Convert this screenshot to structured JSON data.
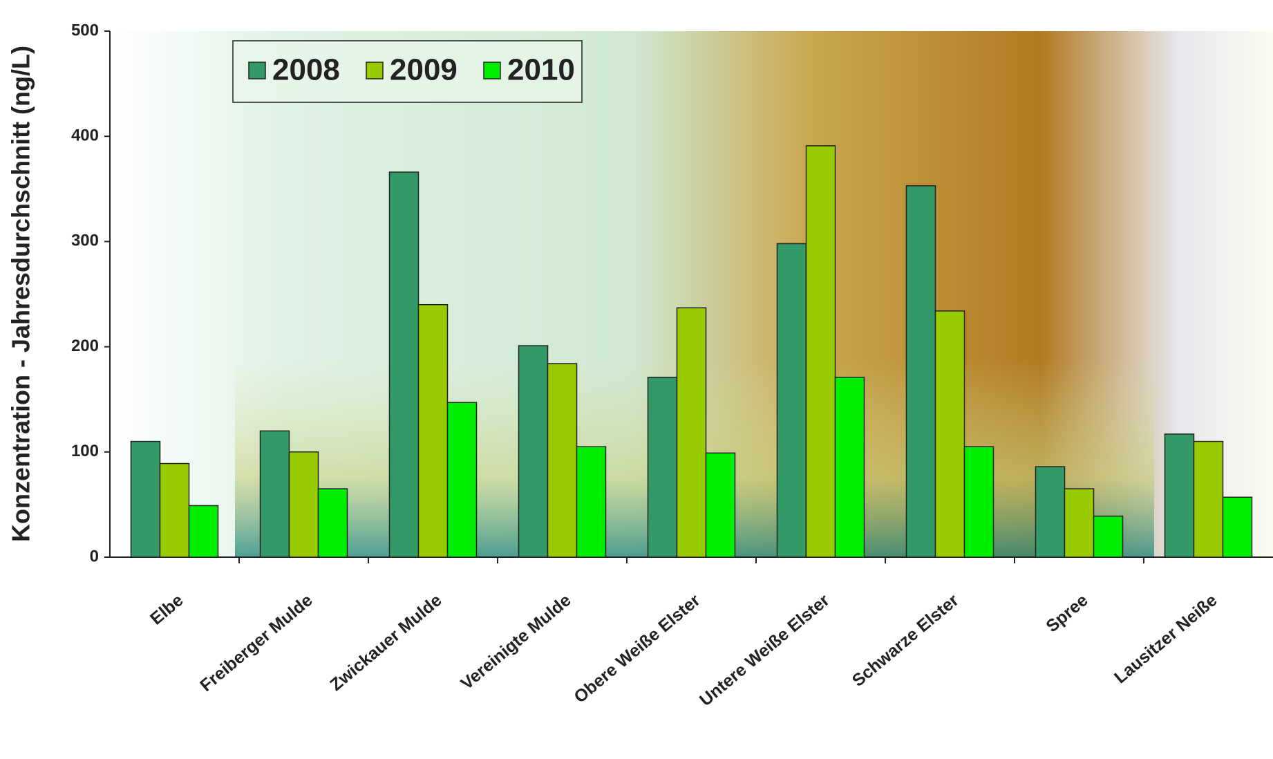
{
  "chart_data": {
    "type": "bar",
    "y_label": "Konzentration - Jahresdurchschnitt  (ng/L)",
    "categories": [
      "Elbe",
      "Freiberger Mulde",
      "Zwickauer Mulde",
      "Vereinigte Mulde",
      "Obere Weiße Elster",
      "Untere Weiße Elster",
      "Schwarze Elster",
      "Spree",
      "Lausitzer Neiße"
    ],
    "series": [
      {
        "name": "2008",
        "color": "#339966",
        "values": [
          110,
          120,
          366,
          201,
          171,
          298,
          353,
          86,
          117
        ]
      },
      {
        "name": "2009",
        "color": "#99cc00",
        "values": [
          89,
          100,
          240,
          184,
          237,
          391,
          234,
          65,
          110
        ]
      },
      {
        "name": "2010",
        "color": "#00ee00",
        "values": [
          49,
          65,
          147,
          105,
          99,
          171,
          105,
          39,
          57
        ]
      }
    ],
    "ylim": [
      0,
      500
    ],
    "yticks": [
      0,
      100,
      200,
      300,
      400,
      500
    ],
    "legend": "top-left"
  }
}
